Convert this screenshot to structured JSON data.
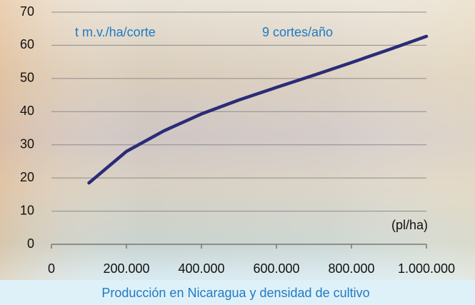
{
  "chart_data": {
    "type": "line",
    "xlabel": "Producción en Nicaragua y densidad de cultivo",
    "annotations": [
      "t m.v./ha/corte",
      "9 cortes/año",
      "(pl/ha)"
    ],
    "x": [
      100000,
      200000,
      300000,
      400000,
      500000,
      600000,
      700000,
      800000,
      900000,
      1000000
    ],
    "series": [
      {
        "name": "Producción",
        "color": "#2b2b78",
        "values": [
          18.5,
          28,
          34.2,
          39.3,
          43.5,
          47.3,
          51,
          54.8,
          58.7,
          62.7
        ]
      }
    ],
    "xlim": [
      0,
      1000000
    ],
    "xticks": [
      0,
      {
        "value": 200000,
        "label": "200.000"
      },
      {
        "value": 400000,
        "label": "400.000"
      },
      {
        "value": 600000,
        "label": "600.000"
      },
      {
        "value": 800000,
        "label": "800.000"
      },
      {
        "value": 1000000,
        "label": "1.000.000"
      }
    ],
    "ylim": [
      0,
      70
    ],
    "yticks": [
      0,
      10,
      20,
      30,
      40,
      50,
      60,
      70
    ],
    "grid": true
  }
}
